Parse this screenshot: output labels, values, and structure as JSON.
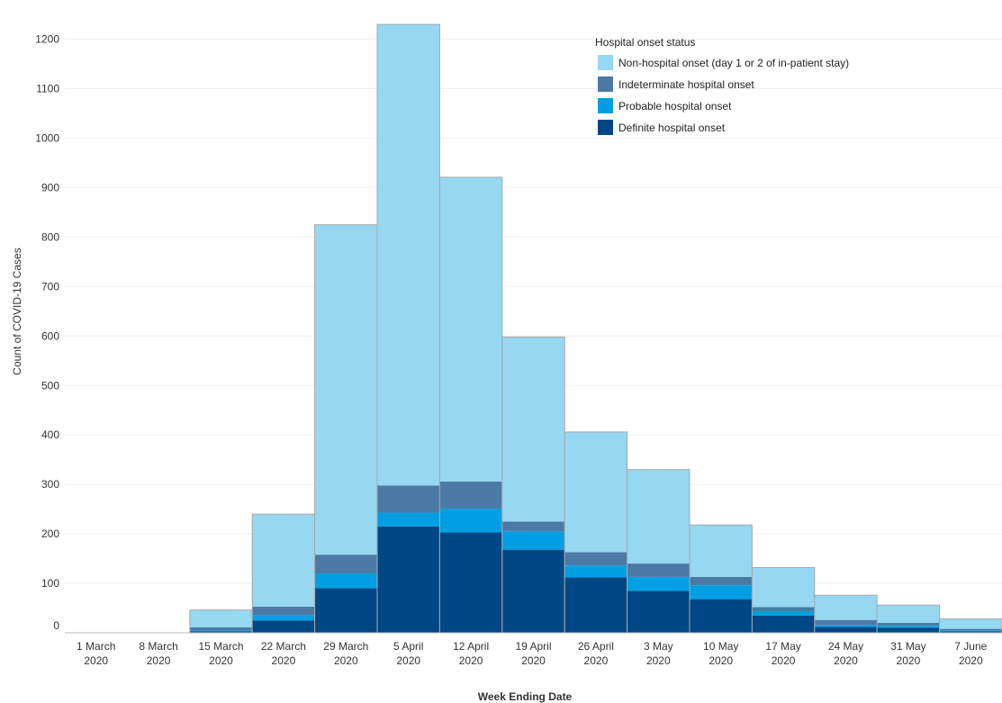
{
  "chart_data": {
    "type": "bar",
    "stacked": true,
    "xlabel": "Week Ending Date",
    "ylabel": "Count of COVID-19 Cases",
    "ylim": [
      0,
      1250
    ],
    "yticks": [
      0,
      100,
      200,
      300,
      400,
      500,
      600,
      700,
      800,
      900,
      1000,
      1100,
      1200
    ],
    "grid": true,
    "legend_position": "top-right",
    "legend_title": "Hospital onset status",
    "categories": [
      [
        "1 March",
        "2020"
      ],
      [
        "8 March",
        "2020"
      ],
      [
        "15 March",
        "2020"
      ],
      [
        "22 March",
        "2020"
      ],
      [
        "29 March",
        "2020"
      ],
      [
        "5 April",
        "2020"
      ],
      [
        "12 April",
        "2020"
      ],
      [
        "19 April",
        "2020"
      ],
      [
        "26 April",
        "2020"
      ],
      [
        "3 May",
        "2020"
      ],
      [
        "10 May",
        "2020"
      ],
      [
        "17 May",
        "2020"
      ],
      [
        "24 May",
        "2020"
      ],
      [
        "31 May",
        "2020"
      ],
      [
        "7 June",
        "2020"
      ]
    ],
    "series": [
      {
        "name": "Definite hospital onset",
        "color": "#004785",
        "values": [
          0,
          0,
          3,
          25,
          90,
          215,
          203,
          168,
          112,
          85,
          68,
          35,
          12,
          10,
          3
        ]
      },
      {
        "name": "Probable hospital onset",
        "color": "#009fe3",
        "values": [
          0,
          0,
          2,
          10,
          30,
          28,
          48,
          37,
          24,
          28,
          28,
          7,
          4,
          4,
          2
        ]
      },
      {
        "name": "Indeterminate hospital onset",
        "color": "#4b7aa6",
        "values": [
          0,
          0,
          6,
          18,
          38,
          55,
          55,
          20,
          27,
          27,
          17,
          10,
          10,
          6,
          3
        ]
      },
      {
        "name": "Non-hospital onset (day 1 or 2 of in-patient stay)",
        "color": "#96d7f2",
        "values": [
          0,
          0,
          35,
          187,
          667,
          932,
          615,
          373,
          243,
          190,
          105,
          80,
          50,
          36,
          20
        ]
      }
    ],
    "legend_order": [
      3,
      2,
      1,
      0
    ]
  }
}
